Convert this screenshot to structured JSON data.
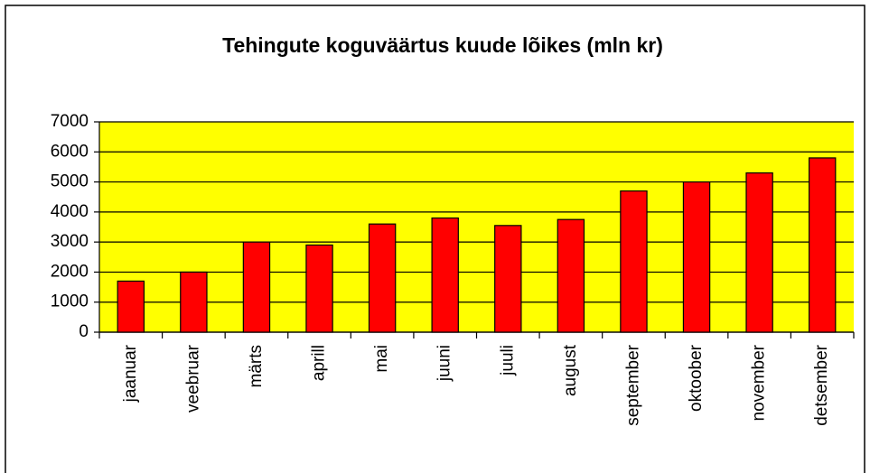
{
  "chart_data": {
    "type": "bar",
    "title": "Tehingute koguväärtus kuude lõikes (mln kr)",
    "categories": [
      "jaanuar",
      "veebruar",
      "märts",
      "aprill",
      "mai",
      "juuni",
      "juuli",
      "august",
      "september",
      "oktoober",
      "november",
      "detsember"
    ],
    "values": [
      1700,
      2000,
      3000,
      2900,
      3600,
      3800,
      3550,
      3750,
      4700,
      5000,
      5300,
      5800
    ],
    "color": "#ff0000",
    "ylim": [
      0,
      7000
    ],
    "yticks": [
      0,
      1000,
      2000,
      3000,
      4000,
      5000,
      6000,
      7000
    ],
    "grid": true
  }
}
